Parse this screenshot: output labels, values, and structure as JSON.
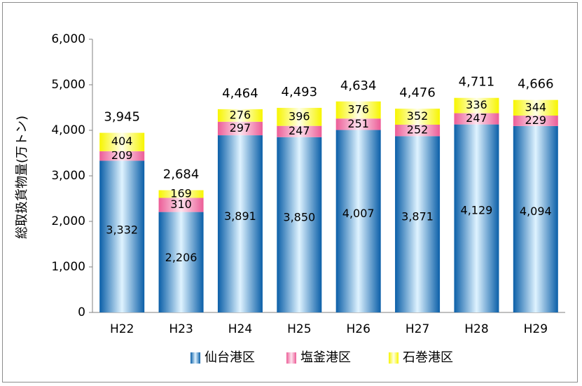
{
  "chart_data": {
    "type": "bar",
    "stacked": true,
    "ylabel": "総取扱貨物量(万トン)",
    "ylim": [
      0,
      6000
    ],
    "yticks": [
      "0",
      "1,000",
      "2,000",
      "3,000",
      "4,000",
      "5,000",
      "6,000"
    ],
    "ytick_values": [
      0,
      1000,
      2000,
      3000,
      4000,
      5000,
      6000
    ],
    "categories": [
      "H22",
      "H23",
      "H24",
      "H25",
      "H26",
      "H27",
      "H28",
      "H29"
    ],
    "series": [
      {
        "name": "仙台港区",
        "color": "#2e86d6",
        "values": [
          3332,
          2206,
          3891,
          3850,
          4007,
          3871,
          4129,
          4094
        ],
        "labels": [
          "3,332",
          "2,206",
          "3,891",
          "3,850",
          "4,007",
          "3,871",
          "4,129",
          "4,094"
        ]
      },
      {
        "name": "塩釜港区",
        "color": "#f48fb8",
        "values": [
          209,
          310,
          297,
          247,
          251,
          252,
          247,
          229
        ],
        "labels": [
          "209",
          "310",
          "297",
          "247",
          "251",
          "252",
          "247",
          "229"
        ]
      },
      {
        "name": "石巻港区",
        "color": "#ffff33",
        "values": [
          404,
          169,
          276,
          396,
          376,
          352,
          336,
          344
        ],
        "labels": [
          "404",
          "169",
          "276",
          "396",
          "376",
          "352",
          "336",
          "344"
        ]
      }
    ],
    "totals": [
      "3,945",
      "2,684",
      "4,464",
      "4,493",
      "4,634",
      "4,476",
      "4,711",
      "4,666"
    ],
    "grid": false,
    "legend_position": "bottom"
  }
}
